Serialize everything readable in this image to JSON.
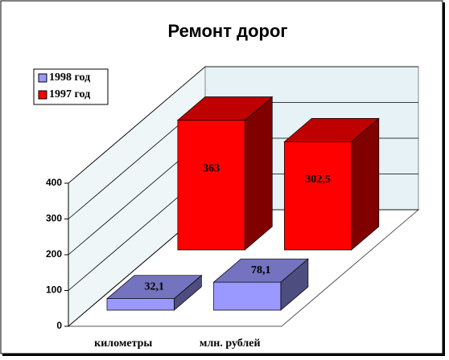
{
  "chart_data": {
    "type": "bar3d",
    "title": "Ремонт дорог",
    "categories": [
      "километры",
      "млн. рублей"
    ],
    "series": [
      {
        "name": "1998 год",
        "color": "#9999ff",
        "values": [
          32.1,
          78.1
        ],
        "value_labels": [
          "32,1",
          "78,1"
        ]
      },
      {
        "name": "1997 год",
        "color": "#ff0000",
        "values": [
          363,
          302.5
        ],
        "value_labels": [
          "363",
          "302,5"
        ]
      }
    ],
    "ylim": [
      0,
      400
    ],
    "yticks": [
      0,
      100,
      200,
      300,
      400
    ],
    "grid": true,
    "legend": "top-left"
  }
}
